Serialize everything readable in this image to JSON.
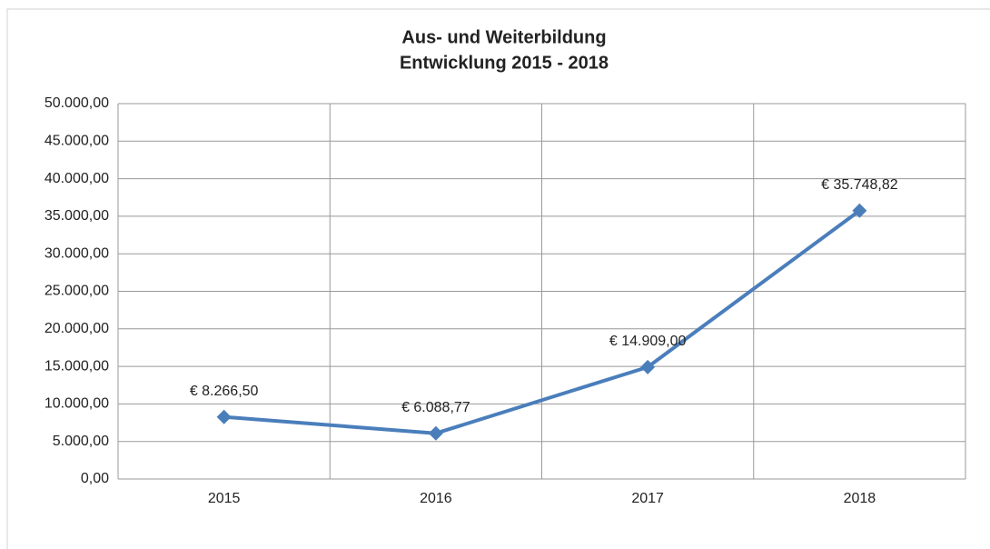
{
  "chart_data": {
    "type": "line",
    "title": "Aus- und Weiterbildung",
    "subtitle": "Entwicklung 2015 - 2018",
    "categories": [
      "2015",
      "2016",
      "2017",
      "2018"
    ],
    "values": [
      8266.5,
      6088.77,
      14909,
      35748.82
    ],
    "value_labels": [
      "€ 8.266,50",
      "€ 6.088,77",
      "€ 14.909,00",
      "€ 35.748,82"
    ],
    "color": "#4a7ebb",
    "ylim": [
      0,
      50000
    ],
    "yticks": [
      {
        "value": 0,
        "label": "0,00"
      },
      {
        "value": 5000,
        "label": "5.000,00"
      },
      {
        "value": 10000,
        "label": "10.000,00"
      },
      {
        "value": 15000,
        "label": "15.000,00"
      },
      {
        "value": 20000,
        "label": "20.000,00"
      },
      {
        "value": 25000,
        "label": "25.000,00"
      },
      {
        "value": 30000,
        "label": "30.000,00"
      },
      {
        "value": 35000,
        "label": "35.000,00"
      },
      {
        "value": 40000,
        "label": "40.000,00"
      },
      {
        "value": 45000,
        "label": "45.000,00"
      },
      {
        "value": 50000,
        "label": "50.000,00"
      }
    ],
    "grid": true
  }
}
